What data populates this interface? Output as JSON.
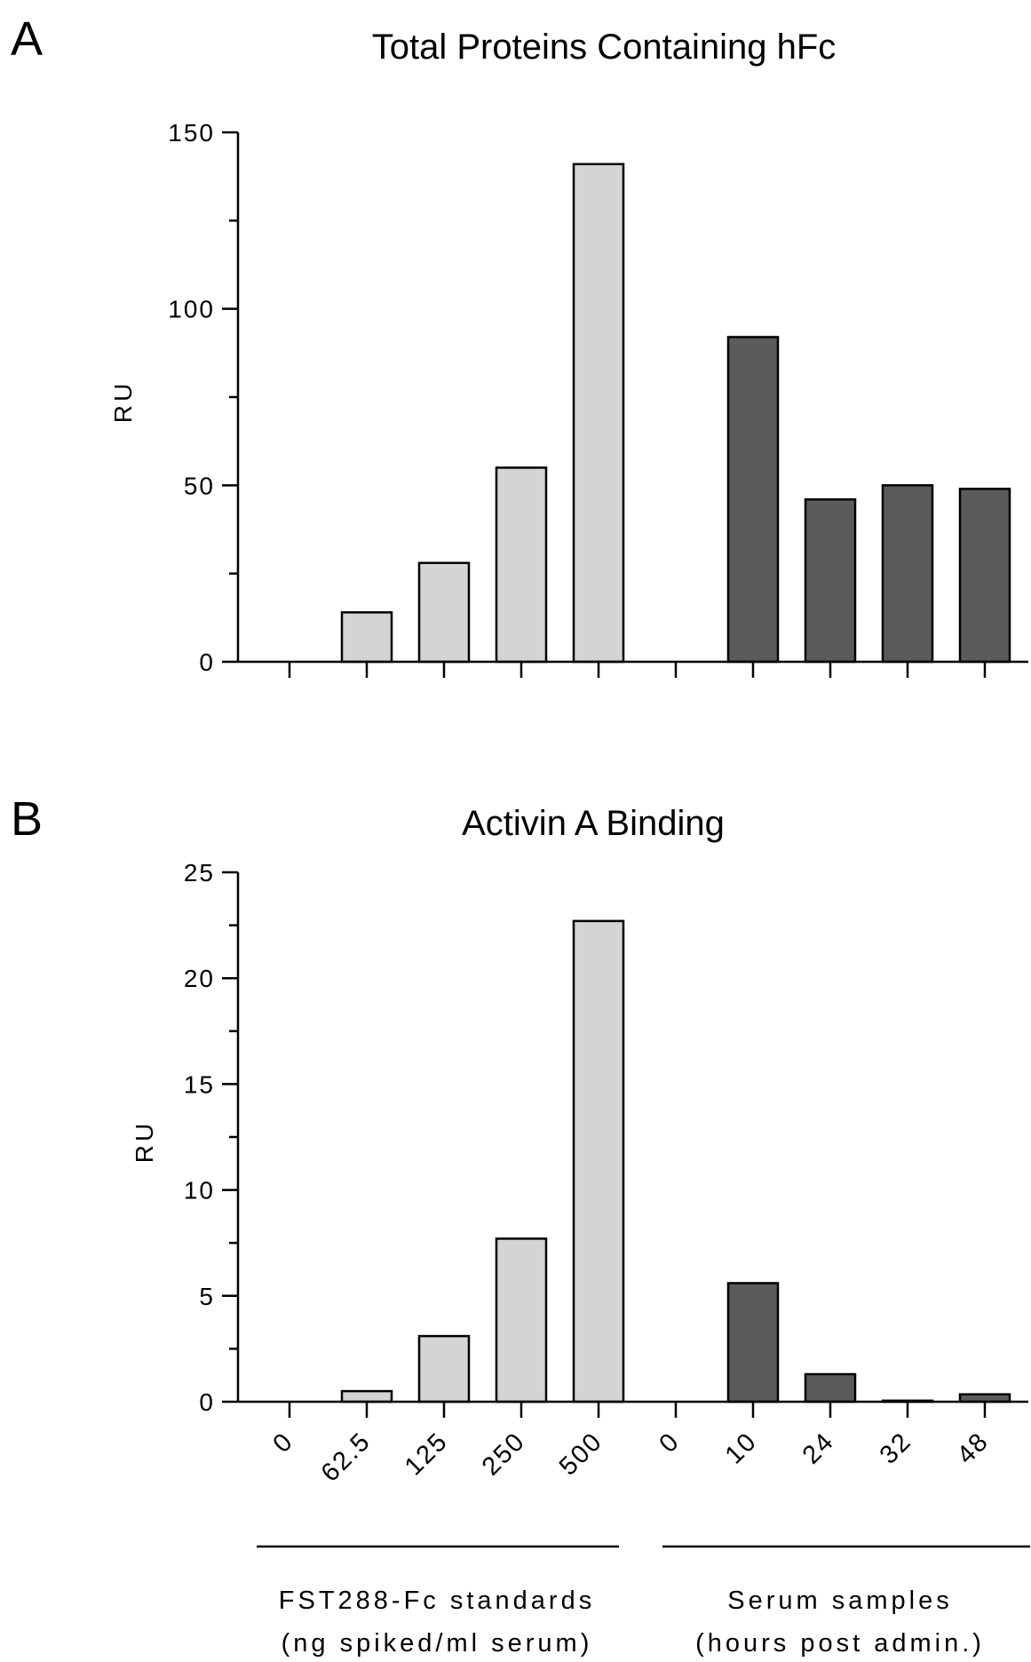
{
  "panels": [
    {
      "letter": "A",
      "chart_data": {
        "type": "bar",
        "title": "Total Proteins Containing hFc",
        "xlabel": "",
        "ylabel": "RU",
        "ylim": [
          0,
          150
        ],
        "yticks": [
          0,
          50,
          100,
          150
        ],
        "categories": [
          "0",
          "62.5",
          "125",
          "250",
          "500",
          "0",
          "10",
          "24",
          "32",
          "48"
        ],
        "values": [
          0,
          14,
          28,
          55,
          141,
          0,
          92,
          46,
          50,
          49
        ],
        "groups": [
          {
            "indices": [
              0,
              1,
              2,
              3,
              4
            ],
            "color": "#d4d4d4"
          },
          {
            "indices": [
              5,
              6,
              7,
              8,
              9
            ],
            "color": "#5b5b5b"
          }
        ],
        "show_category_labels": false
      }
    },
    {
      "letter": "B",
      "chart_data": {
        "type": "bar",
        "title": "Activin A Binding",
        "xlabel": "",
        "ylabel": "RU",
        "ylim": [
          0,
          25
        ],
        "yticks": [
          0,
          5,
          10,
          15,
          20,
          25
        ],
        "categories": [
          "0",
          "62.5",
          "125",
          "250",
          "500",
          "0",
          "10",
          "24",
          "32",
          "48"
        ],
        "values": [
          0,
          0.5,
          3.1,
          7.7,
          22.7,
          0,
          5.6,
          1.3,
          0.05,
          0.35
        ],
        "groups": [
          {
            "indices": [
              0,
              1,
              2,
              3,
              4
            ],
            "color": "#d4d4d4"
          },
          {
            "indices": [
              5,
              6,
              7,
              8,
              9
            ],
            "color": "#5b5b5b"
          }
        ],
        "show_category_labels": true
      }
    }
  ],
  "group_labels": [
    {
      "line1": "FST288-Fc standards",
      "line2": "(ng spiked/ml serum)"
    },
    {
      "line1": "Serum samples",
      "line2": "(hours post admin.)"
    }
  ],
  "colors": {
    "light_bar": "#d4d4d4",
    "dark_bar": "#5b5b5b",
    "axis": "#000000"
  }
}
